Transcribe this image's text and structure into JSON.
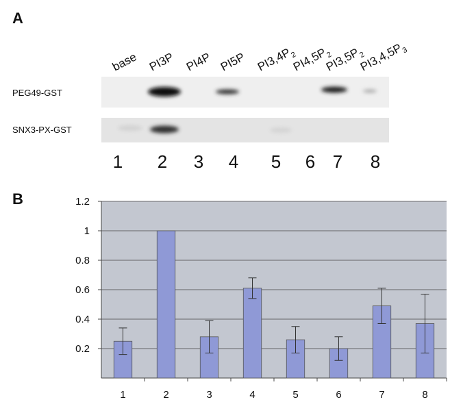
{
  "panel_a": {
    "label": "A",
    "lanes": [
      {
        "main": "base"
      },
      {
        "main": "PI3P"
      },
      {
        "main": "PI4P"
      },
      {
        "main": "PI5P"
      },
      {
        "main": "PI3,4P",
        "sub": "2"
      },
      {
        "main": "PI4,5P",
        "sub": "2"
      },
      {
        "main": "PI3,5P",
        "sub": "2"
      },
      {
        "main": "PI3,4,5P",
        "sub": "3"
      }
    ],
    "rows": [
      "PEG49-GST",
      "SNX3-PX-GST"
    ],
    "lane_numbers": [
      "1",
      "2",
      "3",
      "4",
      "5",
      "6",
      "7",
      "8"
    ]
  },
  "chart_data": {
    "type": "bar",
    "panel_label": "B",
    "categories": [
      "1",
      "2",
      "3",
      "4",
      "5",
      "6",
      "7",
      "8"
    ],
    "values": [
      0.25,
      1,
      0.28,
      0.61,
      0.26,
      0.2,
      0.49,
      0.37
    ],
    "errors": [
      0.09,
      0,
      0.11,
      0.07,
      0.09,
      0.08,
      0.12,
      0.2
    ],
    "color": "#8f99d6",
    "ylim": [
      0,
      1.2
    ],
    "yticks": [
      0.2,
      0.4,
      0.6,
      0.8,
      1,
      1.2
    ],
    "grid": true
  }
}
